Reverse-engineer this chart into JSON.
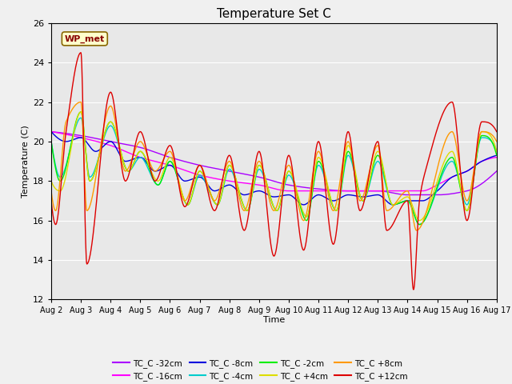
{
  "title": "Temperature Set C",
  "xlabel": "Time",
  "ylabel": "Temperature (C)",
  "ylim": [
    12,
    26
  ],
  "xlim": [
    0,
    15
  ],
  "background_color": "#f0f0f0",
  "plot_bg_color": "#e8e8e8",
  "wp_met_label": "WP_met",
  "wp_met_color": "#880000",
  "wp_met_bg": "#ffffcc",
  "series": [
    {
      "label": "TC_C -32cm",
      "color": "#aa00ff"
    },
    {
      "label": "TC_C -16cm",
      "color": "#ff00ff"
    },
    {
      "label": "TC_C -8cm",
      "color": "#0000dd"
    },
    {
      "label": "TC_C -4cm",
      "color": "#00cccc"
    },
    {
      "label": "TC_C -2cm",
      "color": "#00ee00"
    },
    {
      "label": "TC_C +4cm",
      "color": "#dddd00"
    },
    {
      "label": "TC_C +8cm",
      "color": "#ff9900"
    },
    {
      "label": "TC_C +12cm",
      "color": "#dd0000"
    }
  ],
  "xtick_labels": [
    "Aug 2",
    "Aug 3",
    "Aug 4",
    "Aug 5",
    "Aug 6",
    "Aug 7",
    "Aug 8",
    "Aug 9",
    "Aug 10",
    "Aug 11",
    "Aug 12",
    "Aug 13",
    "Aug 14",
    "Aug 15",
    "Aug 16",
    "Aug 17"
  ],
  "ytick_labels": [
    12,
    14,
    16,
    18,
    20,
    22,
    24,
    26
  ]
}
